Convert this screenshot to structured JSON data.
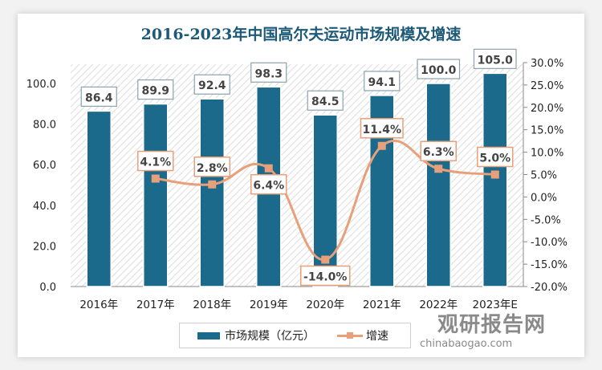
{
  "chart_data": {
    "type": "bar",
    "title": "2016-2023年中国高尔夫运动市场规模及增速",
    "categories": [
      "2016年",
      "2017年",
      "2018年",
      "2019年",
      "2020年",
      "2021年",
      "2022年",
      "2023年E"
    ],
    "series": [
      {
        "name": "市场规模（亿元）",
        "type": "bar",
        "axis": "left",
        "values": [
          86.4,
          89.9,
          92.4,
          98.3,
          84.5,
          94.1,
          100.0,
          105.0
        ],
        "labels": [
          "86.4",
          "89.9",
          "92.4",
          "98.3",
          "84.5",
          "94.1",
          "100.0",
          "105.0"
        ]
      },
      {
        "name": "增速",
        "type": "line",
        "axis": "right",
        "values": [
          null,
          4.1,
          2.8,
          6.4,
          -14.0,
          11.4,
          6.3,
          5.0
        ],
        "labels": [
          "",
          "4.1%",
          "2.8%",
          "6.4%",
          "-14.0%",
          "11.4%",
          "6.3%",
          "5.0%"
        ]
      }
    ],
    "left_axis": {
      "range": [
        0,
        100
      ],
      "ticks": [
        "0.0",
        "20.0",
        "40.0",
        "60.0",
        "80.0",
        "100.0"
      ]
    },
    "right_axis": {
      "range": [
        -20,
        30
      ],
      "unit": "%",
      "ticks": [
        "-20.0%",
        "-15.0%",
        "-10.0%",
        "-5.0%",
        "0.0%",
        "5.0%",
        "10.0%",
        "15.0%",
        "20.0%",
        "25.0%",
        "30.0%"
      ]
    },
    "grid": false,
    "legend": "bottom",
    "colors": {
      "bar": "#1b6a8c",
      "line": "#e8a07a",
      "title": "#1d5a78"
    }
  },
  "watermark": {
    "name": "观研报告网",
    "url": "chinabaogao.com"
  }
}
